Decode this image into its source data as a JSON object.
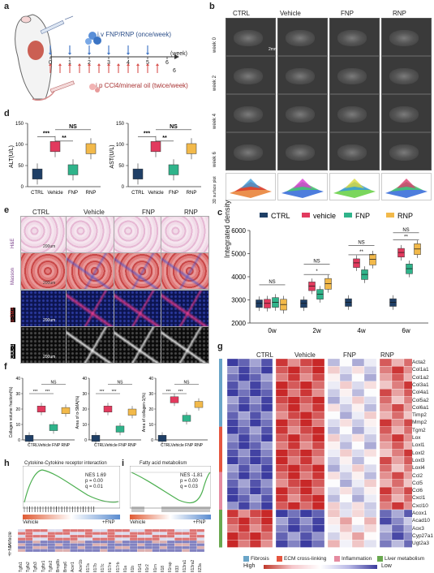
{
  "panels": {
    "a": "a",
    "b": "b",
    "c": "c",
    "d": "d",
    "e": "e",
    "f": "f",
    "g": "g",
    "h": "h",
    "i": "i"
  },
  "a": {
    "iv_text": "i.v FNP/RNP (once/week)",
    "ip_text": "i.p CCl4/mineral oil (twice/week)",
    "axis_unit": "(week)",
    "ticks": [
      "0",
      "1",
      "2",
      "3",
      "4",
      "5",
      "6"
    ],
    "tick_end": "6"
  },
  "b": {
    "columns": [
      "CTRL",
      "Vehicle",
      "FNP",
      "RNP"
    ],
    "rows": [
      "week 0",
      "week 2",
      "week 4",
      "week 6",
      "3D surface plot"
    ],
    "scale": "2mm"
  },
  "c": {
    "legend": [
      "CTRL",
      "vehicle",
      "FNP",
      "RNP"
    ],
    "colors": [
      "#1f3f66",
      "#e23a5e",
      "#2fb38a",
      "#f2b94a"
    ],
    "ylabel": "Integrated density",
    "yticks": [
      "2000",
      "3000",
      "4000",
      "5000",
      "6000"
    ],
    "xticks": [
      "0w",
      "2w",
      "4w",
      "6w"
    ],
    "sig": [
      "NS",
      "*",
      "NS",
      "**",
      "NS",
      "**",
      "NS"
    ]
  },
  "chart_data": [
    {
      "type": "box",
      "panel": "c",
      "ylabel": "Integrated density",
      "ylim": [
        2000,
        6000
      ],
      "categories": [
        "0w",
        "2w",
        "4w",
        "6w"
      ],
      "series": [
        {
          "name": "CTRL",
          "color": "#1f3f66",
          "median": [
            2850,
            2850,
            2900,
            2900
          ]
        },
        {
          "name": "vehicle",
          "color": "#e23a5e",
          "median": [
            2850,
            3600,
            4600,
            5050
          ]
        },
        {
          "name": "FNP",
          "color": "#2fb38a",
          "median": [
            2900,
            3250,
            4100,
            4350
          ]
        },
        {
          "name": "RNP",
          "color": "#f2b94a",
          "median": [
            2800,
            3700,
            4750,
            5200
          ]
        }
      ]
    },
    {
      "type": "box",
      "panel": "d",
      "ylabel": "ALT(U/L)",
      "ylim": [
        0,
        150
      ],
      "categories": [
        "CTRL",
        "Vehicle",
        "FNP",
        "RNP"
      ],
      "values": [
        30,
        95,
        40,
        90
      ]
    },
    {
      "type": "box",
      "panel": "d",
      "ylabel": "AST(U/L)",
      "ylim": [
        0,
        150
      ],
      "categories": [
        "CTRL",
        "Vehicle",
        "FNP",
        "RNP"
      ],
      "values": [
        30,
        95,
        40,
        90
      ]
    }
  ],
  "d": {
    "alt_label": "ALT(U/L)",
    "ast_label": "AST(U/L)",
    "yticks": [
      "0",
      "50",
      "100",
      "150"
    ],
    "xticks": [
      "CTRL",
      "Vehicle",
      "FNP",
      "RNP"
    ],
    "sig": [
      "***",
      "**",
      "NS"
    ]
  },
  "e": {
    "columns": [
      "CTRL",
      "Vehicle",
      "FNP",
      "RNP"
    ],
    "rows": [
      "H&E",
      "Masson",
      "α-SMA",
      "COL-1"
    ],
    "scale": "200um"
  },
  "f": {
    "ylabels": [
      "Collagen volume fraction(%)",
      "Area of α-SMA(%)",
      "Area of collagen-1(%)"
    ],
    "yticks": [
      "0",
      "10",
      "20",
      "30",
      "40"
    ],
    "xticks": "CTRLVehicle FNP RNP",
    "sig": [
      "***",
      "***",
      "NS"
    ]
  },
  "g": {
    "columns": [
      "CTRL",
      "Vehicle",
      "FNP",
      "RNP"
    ],
    "genes": [
      "Acta2",
      "Col1a1",
      "Col1a2",
      "Col3a1",
      "Col4a1",
      "Col5a2",
      "Col6a1",
      "Timp2",
      "Mmp2",
      "Tgm2",
      "Lox",
      "Loxl1",
      "Loxl2",
      "Loxl3",
      "Loxl4",
      "Ccl2",
      "Ccl5",
      "Ccl6",
      "Cxcl1",
      "Cxcl10",
      "Acox1",
      "Acad10",
      "Aox3",
      "Cyp27a1",
      "Ugt2a3"
    ],
    "legend": [
      "Fibrosis",
      "ECM cross-linking",
      "Inflammation",
      "Liver metabolism"
    ],
    "legend_colors": [
      "#6aa5c8",
      "#e5553f",
      "#e58ba0",
      "#69a84f"
    ],
    "high": "High",
    "low": "Low"
  },
  "h": {
    "title": "Cytokine-Cytokine receptor interaction",
    "nes": "NES 1.69",
    "p": "p = 0.00",
    "q": "q = 0.01",
    "left": "Vehicle",
    "right": "+FNP",
    "row_labels": [
      "Vehicle",
      "+FNP"
    ],
    "genes": [
      "Tgfb1",
      "Tgfb2",
      "Tgfb3",
      "Tgfbr1",
      "Tgfbr2",
      "Bmp8b",
      "Bmp6",
      "Acvr1",
      "Acvr1b",
      "Il17a",
      "Il17b",
      "Il17c",
      "Il17re",
      "Il17rb",
      "Il1a",
      "Il1b",
      "Il1rl1",
      "Il1r2",
      "Il1rn",
      "Il18",
      "Il1rap",
      "Il33",
      "Il13ra1",
      "Il13ra2",
      "Il23a"
    ]
  },
  "i": {
    "title": "Fatty acid metabolism",
    "nes": "NES -1.81",
    "p": "p = 0.00",
    "q": "q = 0.03",
    "left": "Vehicle",
    "right": "+FNP"
  }
}
